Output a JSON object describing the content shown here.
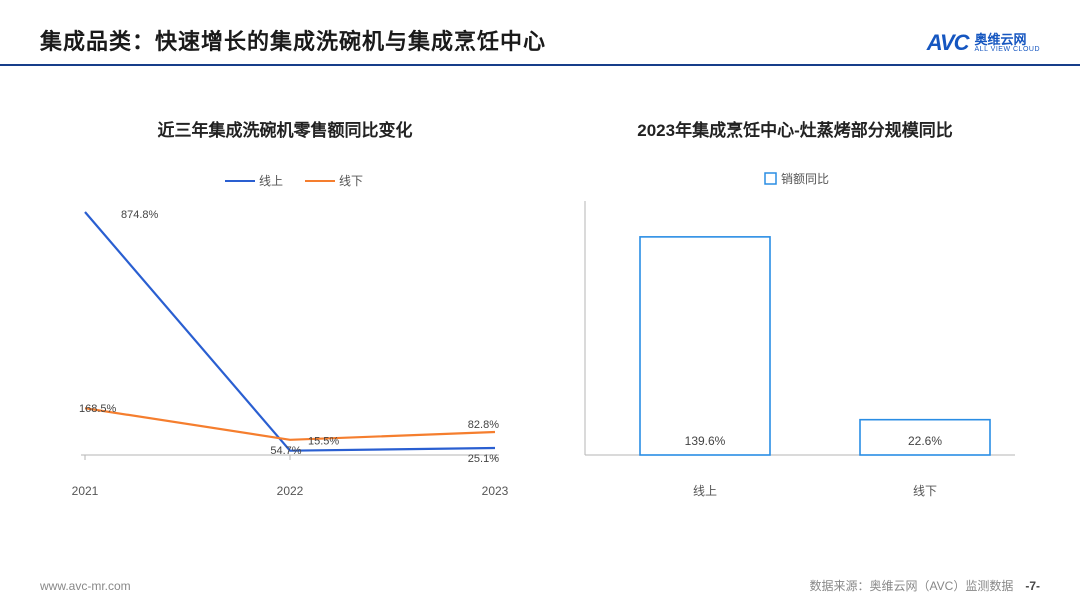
{
  "header": {
    "title": "集成品类：快速增长的集成洗碗机与集成烹饪中心",
    "logo_mark": "AVC",
    "logo_cn": "奥维云网",
    "logo_en": "ALL VIEW CLOUD"
  },
  "chart_left": {
    "type": "line",
    "title": "近三年集成洗碗机零售额同比变化",
    "categories": [
      "2021",
      "2022",
      "2023"
    ],
    "series": [
      {
        "name": "线上",
        "color": "#2a5fd1",
        "values": [
          874.8,
          15.5,
          25.1
        ]
      },
      {
        "name": "线下",
        "color": "#f57e2e",
        "values": [
          168.5,
          54.7,
          82.8
        ]
      }
    ],
    "data_labels": {
      "p2021_online": "874.8%",
      "p2021_offline": "168.5%",
      "p2022_online": "15.5%",
      "p2022_offline": "54.7%",
      "p2023_online": "25.1%",
      "p2023_offline": "82.8%"
    },
    "axis_color": "#b5b5b5",
    "label_color": "#555",
    "label_fontsize": 12,
    "line_width": 2.2
  },
  "chart_right": {
    "type": "bar",
    "title": "2023年集成烹饪中心-灶蒸烤部分规模同比",
    "legend_label": "销额同比",
    "legend_color": "#2a8de4",
    "categories": [
      "线上",
      "线下"
    ],
    "values": [
      139.6,
      22.6
    ],
    "bar_outline": "#2a8de4",
    "bar_fill": "#ffffff",
    "data_labels": {
      "online": "139.6%",
      "offline": "22.6%"
    },
    "axis_color": "#b5b5b5",
    "label_color": "#555",
    "label_fontsize": 12,
    "ymax": 160
  },
  "footer": {
    "url": "www.avc-mr.com",
    "source": "数据来源：奥维云网（AVC）监测数据",
    "page": "-7-"
  }
}
